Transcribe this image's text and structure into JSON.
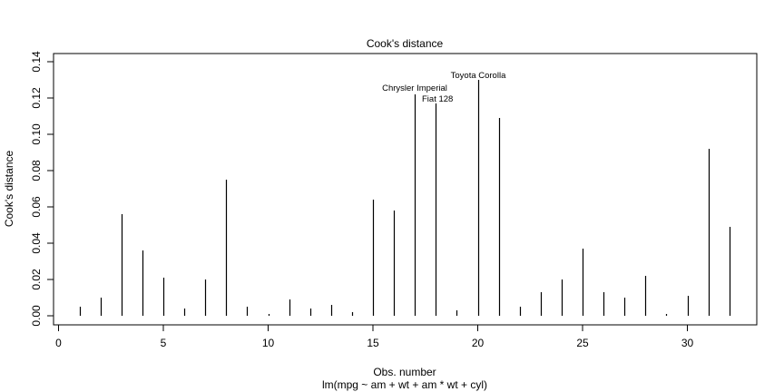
{
  "chart_data": {
    "type": "bar",
    "title": "Cook's distance",
    "xlabel": "Obs. number",
    "subtitle": "lm(mpg ~ am + wt + am * wt + cyl)",
    "ylabel": "Cook's distance",
    "xlim": [
      0,
      33
    ],
    "ylim": [
      0,
      0.14
    ],
    "x_ticks": [
      0,
      5,
      10,
      15,
      20,
      25,
      30
    ],
    "y_ticks": [
      0.0,
      0.02,
      0.04,
      0.06,
      0.08,
      0.1,
      0.12,
      0.14
    ],
    "x_tick_labels": [
      "0",
      "5",
      "10",
      "15",
      "20",
      "25",
      "30"
    ],
    "y_tick_labels": [
      "0.00",
      "0.02",
      "0.04",
      "0.06",
      "0.08",
      "0.10",
      "0.12",
      "0.14"
    ],
    "x": [
      1,
      2,
      3,
      4,
      5,
      6,
      7,
      8,
      9,
      10,
      11,
      12,
      13,
      14,
      15,
      16,
      17,
      18,
      19,
      20,
      21,
      22,
      23,
      24,
      25,
      26,
      27,
      28,
      29,
      30,
      31,
      32
    ],
    "values": [
      0.005,
      0.01,
      0.056,
      0.036,
      0.021,
      0.004,
      0.02,
      0.075,
      0.005,
      0.001,
      0.009,
      0.004,
      0.006,
      0.002,
      0.064,
      0.058,
      0.122,
      0.117,
      0.003,
      0.13,
      0.109,
      0.005,
      0.013,
      0.02,
      0.037,
      0.013,
      0.01,
      0.022,
      0.001,
      0.011,
      0.092,
      0.049
    ],
    "annotations": [
      {
        "obs": 17,
        "label": "Chrysler Imperial"
      },
      {
        "obs": 18,
        "label": "Fiat 128"
      },
      {
        "obs": 20,
        "label": "Toyota Corolla"
      }
    ],
    "grid": false,
    "colors": {
      "bars": "#000000",
      "axes": "#000000",
      "background": "#ffffff"
    }
  }
}
